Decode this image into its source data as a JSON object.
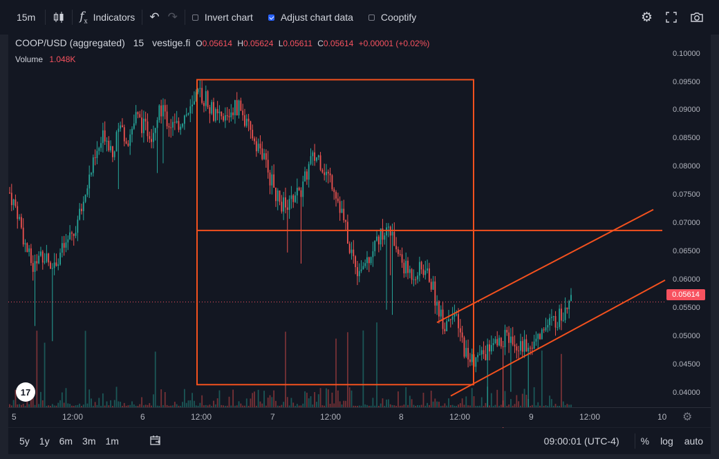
{
  "toolbar": {
    "interval": "15m",
    "indicators_label": "Indicators",
    "invert_label": "Invert chart",
    "adjust_label": "Adjust chart data",
    "cooptify_label": "Cooptify"
  },
  "legend": {
    "symbol": "COOP/USD (aggregated)",
    "interval": "15",
    "source": "vestige.fi",
    "o_label": "O",
    "o_value": "0.05614",
    "h_label": "H",
    "h_value": "0.05624",
    "l_label": "L",
    "l_value": "0.05611",
    "c_label": "C",
    "c_value": "0.05614",
    "change": "+0.00001 (+0.02%)",
    "volume_label": "Volume",
    "volume_value": "1.048K"
  },
  "price_tag": "0.05614",
  "bottom": {
    "ranges": [
      "5y",
      "1y",
      "6m",
      "3m",
      "1m"
    ],
    "clock": "09:00:01 (UTC-4)",
    "percent": "%",
    "log": "log",
    "auto": "auto"
  },
  "colors": {
    "up": "#26a69a",
    "down": "#ef5350",
    "drawing": "#f4511e",
    "bg": "#131722"
  },
  "chart_data": {
    "type": "candlestick",
    "symbol": "COOP/USD (aggregated)",
    "y_ticks": [
      "0.10000",
      "0.09500",
      "0.09000",
      "0.08500",
      "0.08000",
      "0.07500",
      "0.07000",
      "0.06500",
      "0.06000",
      "0.05500",
      "0.05000",
      "0.04500",
      "0.04000"
    ],
    "x_ticks": [
      "5",
      "12:00",
      "6",
      "12:00",
      "7",
      "12:00",
      "8",
      "12:00",
      "9",
      "12:00",
      "10"
    ],
    "ylim": [
      0.0375,
      0.1035
    ],
    "last_price": 0.05614,
    "close_series": [
      0.0755,
      0.072,
      0.066,
      0.062,
      0.065,
      0.063,
      0.064,
      0.066,
      0.068,
      0.072,
      0.078,
      0.082,
      0.086,
      0.083,
      0.087,
      0.085,
      0.089,
      0.087,
      0.086,
      0.091,
      0.088,
      0.087,
      0.089,
      0.09,
      0.093,
      0.092,
      0.089,
      0.088,
      0.09,
      0.091,
      0.087,
      0.085,
      0.082,
      0.078,
      0.074,
      0.073,
      0.075,
      0.076,
      0.081,
      0.082,
      0.079,
      0.077,
      0.072,
      0.066,
      0.062,
      0.063,
      0.066,
      0.068,
      0.069,
      0.065,
      0.062,
      0.061,
      0.062,
      0.061,
      0.056,
      0.052,
      0.055,
      0.05,
      0.046,
      0.046,
      0.047,
      0.048,
      0.049,
      0.05,
      0.049,
      0.048,
      0.049,
      0.05,
      0.052,
      0.053,
      0.054,
      0.05614
    ],
    "drawings": [
      {
        "type": "rectangle",
        "price_top": 0.0955,
        "price_bottom": 0.0415
      },
      {
        "type": "horizontal_line",
        "price": 0.0688
      },
      {
        "type": "channel_upper",
        "from": 0.0525,
        "to": 0.0725
      },
      {
        "type": "channel_lower",
        "from": 0.0395,
        "to": 0.06
      }
    ]
  }
}
